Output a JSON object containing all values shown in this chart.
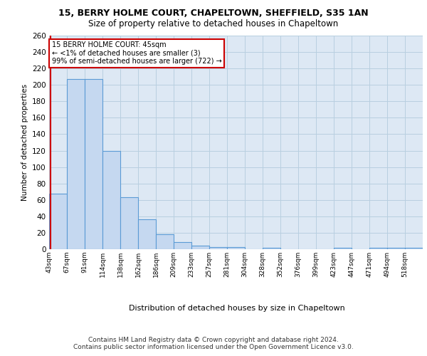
{
  "title_line1": "15, BERRY HOLME COURT, CHAPELTOWN, SHEFFIELD, S35 1AN",
  "title_line2": "Size of property relative to detached houses in Chapeltown",
  "xlabel": "Distribution of detached houses by size in Chapeltown",
  "ylabel": "Number of detached properties",
  "footnote1": "Contains HM Land Registry data © Crown copyright and database right 2024.",
  "footnote2": "Contains public sector information licensed under the Open Government Licence v3.0.",
  "bin_labels": [
    "43sqm",
    "67sqm",
    "91sqm",
    "114sqm",
    "138sqm",
    "162sqm",
    "186sqm",
    "209sqm",
    "233sqm",
    "257sqm",
    "281sqm",
    "304sqm",
    "328sqm",
    "352sqm",
    "376sqm",
    "399sqm",
    "423sqm",
    "447sqm",
    "471sqm",
    "494sqm",
    "518sqm"
  ],
  "bar_values": [
    68,
    207,
    207,
    120,
    63,
    36,
    18,
    9,
    4,
    3,
    3,
    0,
    2,
    0,
    0,
    0,
    2,
    0,
    2,
    2,
    2
  ],
  "bar_color": "#c5d8f0",
  "bar_edge_color": "#5b9bd5",
  "grid_color": "#b8cfe0",
  "background_color": "#dde8f4",
  "property_line_color": "#cc0000",
  "annotation_text": "15 BERRY HOLME COURT: 45sqm\n← <1% of detached houses are smaller (3)\n99% of semi-detached houses are larger (722) →",
  "annotation_box_color": "#ffffff",
  "annotation_box_edge": "#cc0000",
  "ylim": [
    0,
    260
  ],
  "yticks": [
    0,
    20,
    40,
    60,
    80,
    100,
    120,
    140,
    160,
    180,
    200,
    220,
    240,
    260
  ]
}
